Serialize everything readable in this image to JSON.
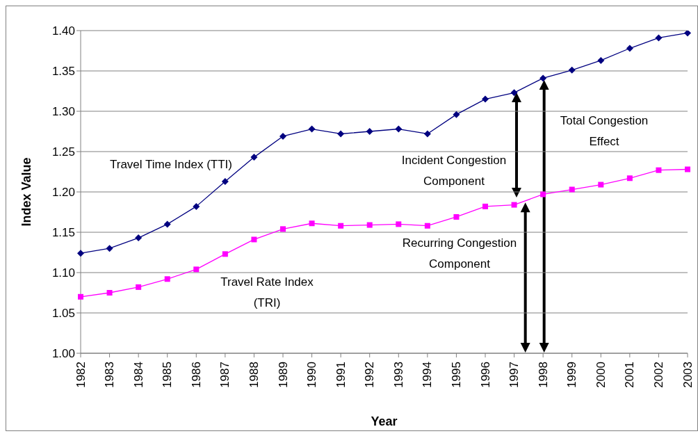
{
  "chart_data": {
    "type": "line",
    "xlabel": "Year",
    "ylabel": "Index Value",
    "categories": [
      "1982",
      "1983",
      "1984",
      "1985",
      "1986",
      "1987",
      "1988",
      "1989",
      "1990",
      "1991",
      "1992",
      "1993",
      "1994",
      "1995",
      "1996",
      "1997",
      "1998",
      "1999",
      "2000",
      "2001",
      "2002",
      "2003"
    ],
    "series": [
      {
        "name": "Travel Time Index (TTI)",
        "color": "#000080",
        "marker": "diamond",
        "values": [
          1.124,
          1.13,
          1.143,
          1.16,
          1.182,
          1.213,
          1.243,
          1.269,
          1.278,
          1.272,
          1.275,
          1.278,
          1.272,
          1.296,
          1.315,
          1.323,
          1.341,
          1.351,
          1.363,
          1.378,
          1.391,
          1.397
        ]
      },
      {
        "name": "Travel Rate Index (TRI)",
        "color": "#ff00ff",
        "marker": "square",
        "values": [
          1.07,
          1.075,
          1.082,
          1.092,
          1.104,
          1.123,
          1.141,
          1.154,
          1.161,
          1.158,
          1.159,
          1.16,
          1.158,
          1.169,
          1.182,
          1.184,
          1.197,
          1.203,
          1.209,
          1.217,
          1.227,
          1.228
        ]
      }
    ],
    "ylim": [
      1.0,
      1.4
    ],
    "yticks": [
      {
        "value": 1.0,
        "label": "1.00"
      },
      {
        "value": 1.05,
        "label": "1.05"
      },
      {
        "value": 1.1,
        "label": "1.10"
      },
      {
        "value": 1.15,
        "label": "1.15"
      },
      {
        "value": 1.2,
        "label": "1.20"
      },
      {
        "value": 1.25,
        "label": "1.25"
      },
      {
        "value": 1.3,
        "label": "1.30"
      },
      {
        "value": 1.35,
        "label": "1.35"
      },
      {
        "value": 1.4,
        "label": "1.40"
      }
    ],
    "grid": "y",
    "legend": false,
    "annotations": [
      "Incident Congestion Component",
      "Recurring Congestion Component",
      "Total Congestion Effect"
    ]
  }
}
